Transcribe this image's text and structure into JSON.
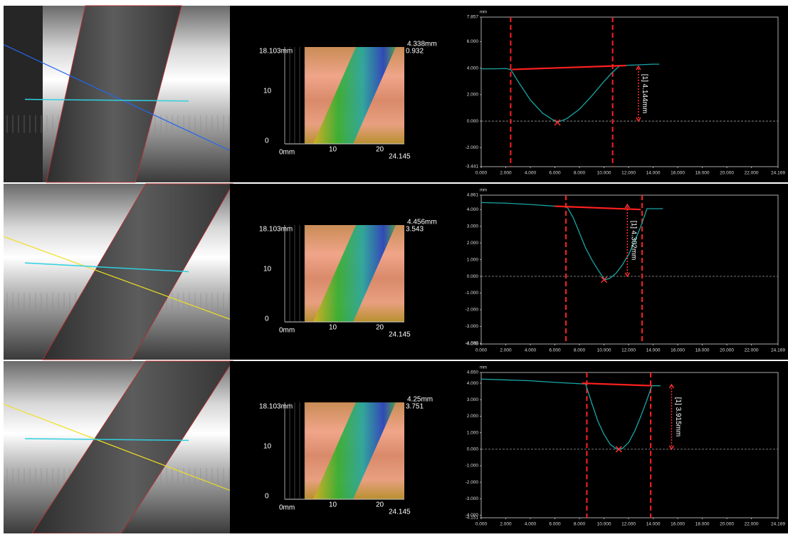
{
  "chart_data": [
    {
      "type": "line",
      "y_label": "mm",
      "xlim": [
        0,
        24.169
      ],
      "ylim": [
        -3.441,
        7.857
      ],
      "yticks": [
        7.857,
        {
          "value": 6,
          "label": "6.000"
        },
        {
          "value": 4,
          "label": "4.000"
        },
        {
          "value": 2,
          "label": "2.000"
        },
        {
          "value": 0,
          "label": "0.000"
        },
        {
          "value": -2,
          "label": "-2.000"
        },
        -3.441
      ],
      "xticks": [
        {
          "value": 0,
          "label": "0.000"
        },
        {
          "value": 2,
          "label": "2.000"
        },
        {
          "value": 4,
          "label": "4.000"
        },
        {
          "value": 6,
          "label": "6.000"
        },
        {
          "value": 8,
          "label": "8.000"
        },
        {
          "value": 10,
          "label": "10.000"
        },
        {
          "value": 12,
          "label": "12.000"
        },
        {
          "value": 14,
          "label": "14.000"
        },
        {
          "value": 16,
          "label": "16.000"
        },
        {
          "value": 18,
          "label": "18.000"
        },
        {
          "value": 20,
          "label": "20.000"
        },
        {
          "value": 22,
          "label": "22.000"
        },
        24.169
      ],
      "series": [
        {
          "color": "#1aa5a5",
          "x": [
            0,
            1,
            2,
            2.4,
            3,
            4,
            5,
            6,
            6.2,
            7,
            8,
            9,
            10,
            10.7,
            11.3,
            12,
            13,
            14,
            14.5
          ],
          "values": [
            3.95,
            3.95,
            3.97,
            3.9,
            3.0,
            1.6,
            0.6,
            0.0,
            -0.1,
            0.2,
            0.9,
            1.9,
            3.0,
            3.7,
            4.2,
            4.22,
            4.26,
            4.3,
            4.3
          ]
        },
        {
          "color": "#ff2020",
          "x": [
            2.5,
            11.8
          ],
          "values": [
            3.9,
            4.2
          ]
        }
      ],
      "vlines": [
        2.4,
        10.7
      ],
      "minimum": {
        "x": 6.2,
        "y": -0.1
      },
      "measurement": {
        "label": "[1] 4.144mm",
        "value": 4.144,
        "x": 12.8
      }
    },
    {
      "type": "line",
      "y_label": "mm",
      "xlim": [
        0,
        24.169
      ],
      "ylim": [
        -4.048,
        4.861
      ],
      "yticks": [
        4.861,
        {
          "value": 4,
          "label": "4.000"
        },
        {
          "value": 3,
          "label": "3.000"
        },
        {
          "value": 2,
          "label": "2.000"
        },
        {
          "value": 1,
          "label": "1.000"
        },
        {
          "value": 0,
          "label": "0.000"
        },
        {
          "value": -1,
          "label": "-1.000"
        },
        {
          "value": -2,
          "label": "-2.000"
        },
        {
          "value": -3,
          "label": "-3.000"
        },
        {
          "value": -4,
          "label": "-4.000"
        },
        -4.048
      ],
      "xticks": [
        {
          "value": 0,
          "label": "0.000"
        },
        {
          "value": 2,
          "label": "2.000"
        },
        {
          "value": 4,
          "label": "4.000"
        },
        {
          "value": 6,
          "label": "6.000"
        },
        {
          "value": 8,
          "label": "8.000"
        },
        {
          "value": 10,
          "label": "10.000"
        },
        {
          "value": 12,
          "label": "12.000"
        },
        {
          "value": 14,
          "label": "14.000"
        },
        {
          "value": 16,
          "label": "16.000"
        },
        {
          "value": 18,
          "label": "18.000"
        },
        {
          "value": 20,
          "label": "20.000"
        },
        {
          "value": 22,
          "label": "22.000"
        },
        24.169
      ],
      "series": [
        {
          "color": "#1aa5a5",
          "x": [
            0,
            2,
            4,
            6,
            7,
            7.5,
            8,
            8.5,
            9,
            9.5,
            10,
            10.1,
            10.5,
            11,
            11.5,
            12,
            12.5,
            13,
            13.5,
            14,
            14.8
          ],
          "values": [
            4.42,
            4.38,
            4.3,
            4.2,
            4.15,
            3.5,
            2.6,
            1.7,
            1.0,
            0.4,
            -0.15,
            -0.2,
            -0.1,
            0.2,
            0.7,
            1.3,
            2.1,
            3.0,
            4.05,
            4.05,
            4.05
          ]
        },
        {
          "color": "#ff2020",
          "x": [
            6,
            13
          ],
          "values": [
            4.2,
            4.0
          ]
        }
      ],
      "vlines": [
        6.9,
        13.1
      ],
      "minimum": {
        "x": 10.0,
        "y": -0.2
      },
      "measurement": {
        "label": "[1] 4.302mm",
        "value": 4.302,
        "x": 11.9
      }
    },
    {
      "type": "line",
      "y_label": "mm",
      "xlim": [
        0,
        24.169
      ],
      "ylim": [
        -4.151,
        4.65
      ],
      "yticks": [
        {
          "value": 4.65,
          "label": "4.650"
        },
        {
          "value": 4,
          "label": "4.000"
        },
        {
          "value": 3,
          "label": "3.000"
        },
        {
          "value": 2,
          "label": "2.000"
        },
        {
          "value": 1,
          "label": "1.000"
        },
        {
          "value": 0,
          "label": "0.000"
        },
        {
          "value": -1,
          "label": "-1.000"
        },
        {
          "value": -2,
          "label": "-2.000"
        },
        {
          "value": -3,
          "label": "-3.000"
        },
        {
          "value": -4,
          "label": "-4.000"
        },
        -4.151
      ],
      "xticks": [
        {
          "value": 0,
          "label": "0.000"
        },
        {
          "value": 2,
          "label": "2.000"
        },
        {
          "value": 4,
          "label": "4.000"
        },
        {
          "value": 6,
          "label": "6.000"
        },
        {
          "value": 8,
          "label": "8.000"
        },
        {
          "value": 10,
          "label": "10.000"
        },
        {
          "value": 12,
          "label": "12.000"
        },
        {
          "value": 14,
          "label": "14.000"
        },
        {
          "value": 16,
          "label": "16.000"
        },
        {
          "value": 18,
          "label": "18.000"
        },
        {
          "value": 20,
          "label": "20.000"
        },
        {
          "value": 22,
          "label": "22.000"
        },
        24.169
      ],
      "series": [
        {
          "color": "#1aa5a5",
          "x": [
            0,
            2,
            4,
            6,
            8,
            8.5,
            9,
            9.5,
            10,
            10.5,
            11,
            11.2,
            11.5,
            12,
            12.5,
            13,
            13.5,
            13.9,
            14.6
          ],
          "values": [
            4.25,
            4.2,
            4.15,
            4.05,
            3.97,
            3.95,
            2.8,
            1.7,
            0.9,
            0.3,
            0.02,
            0.0,
            0.05,
            0.4,
            1.1,
            2.0,
            3.0,
            3.85,
            3.85
          ]
        },
        {
          "color": "#ff2020",
          "x": [
            8.2,
            13.9
          ],
          "values": [
            4.0,
            3.85
          ]
        }
      ],
      "vlines": [
        8.6,
        13.8
      ],
      "minimum": {
        "x": 11.2,
        "y": 0.0
      },
      "measurement": {
        "label": "[1] 3.915mm",
        "value": 3.915,
        "x": 15.5
      }
    }
  ],
  "surface_maps": [
    {
      "height_label": "18.103mm",
      "max_label": "4.338mm",
      "min_label": "0.932",
      "y_tick_mid": "10",
      "y_tick_zero": "0",
      "x_origin": "0mm",
      "x_tick_1": "10",
      "x_tick_2": "20",
      "x_end": "24.145"
    },
    {
      "height_label": "18.103mm",
      "max_label": "4.456mm",
      "min_label": "3.543",
      "y_tick_mid": "10",
      "y_tick_zero": "0",
      "x_origin": "0mm",
      "x_tick_1": "10",
      "x_tick_2": "20",
      "x_end": "24.145"
    },
    {
      "height_label": "18.103mm",
      "max_label": "4.25mm",
      "min_label": "3.751",
      "y_tick_mid": "10",
      "y_tick_zero": "0",
      "x_origin": "0mm",
      "x_tick_1": "10",
      "x_tick_2": "20",
      "x_end": "24.145"
    }
  ]
}
